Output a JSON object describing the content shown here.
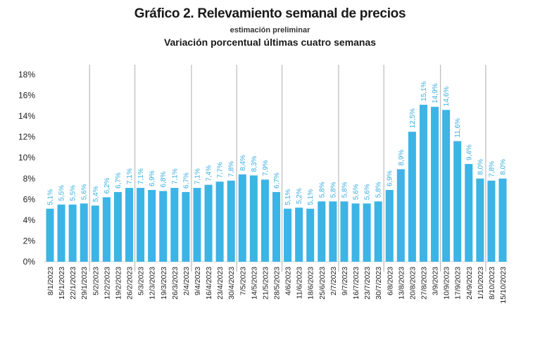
{
  "chart_data": {
    "type": "bar",
    "title": "Gráfico 2. Relevamiento semanal de precios",
    "subtitle": "estimación preliminar",
    "subtitle2": "Variación porcentual últimas cuatro semanas",
    "xlabel": "",
    "ylabel": "",
    "ylim": [
      0,
      18
    ],
    "yticks": [
      "0%",
      "2%",
      "4%",
      "6%",
      "8%",
      "10%",
      "12%",
      "14%",
      "16%",
      "18%"
    ],
    "ytick_values": [
      0,
      2,
      4,
      6,
      8,
      10,
      12,
      14,
      16,
      18
    ],
    "grid": false,
    "bar_color": "#3cb4e6",
    "label_color": "#3aaee0",
    "separator_color": "#bfbfbf",
    "categories": [
      "8/1/2023",
      "15/1/2023",
      "22/1/2023",
      "29/1/2023",
      "5/2/2023",
      "12/2/2023",
      "19/2/2023",
      "26/2/2023",
      "5/3/2023",
      "12/3/2023",
      "19/3/2023",
      "26/3/2023",
      "2/4/2023",
      "9/4/2023",
      "16/4/2023",
      "23/4/2023",
      "30/4/2023",
      "7/5/2023",
      "14/5/2023",
      "21/5/2023",
      "28/5/2023",
      "4/6/2023",
      "11/6/2023",
      "18/6/2023",
      "25/6/2023",
      "2/7/2023",
      "9/7/2023",
      "16/7/2023",
      "23/7/2023",
      "30/7/2023",
      "6/8/2023",
      "13/8/2023",
      "20/8/2023",
      "27/8/2023",
      "3/9/2023",
      "10/9/2023",
      "17/9/2023",
      "24/9/2023",
      "1/10/2023",
      "8/10/2023",
      "15/10/2023"
    ],
    "values": [
      5.1,
      5.5,
      5.5,
      5.6,
      5.4,
      6.2,
      6.7,
      7.1,
      7.1,
      6.9,
      6.8,
      7.1,
      6.7,
      7.1,
      7.4,
      7.7,
      7.8,
      8.4,
      8.3,
      7.9,
      6.7,
      5.1,
      5.2,
      5.1,
      5.8,
      5.8,
      5.8,
      5.6,
      5.6,
      5.8,
      6.9,
      8.9,
      12.5,
      15.1,
      14.9,
      14.6,
      11.6,
      9.4,
      8.0,
      7.8,
      8.0
    ],
    "data_labels": [
      "5,1%",
      "5,5%",
      "5,5%",
      "5,6%",
      "5,4%",
      "6,2%",
      "6,7%",
      "7,1%",
      "7,1%",
      "6,9%",
      "6,8%",
      "7,1%",
      "6,7%",
      "7,1%",
      "7,4%",
      "7,7%",
      "7,8%",
      "8,4%",
      "8,3%",
      "7,9%",
      "6,7%",
      "5,1%",
      "5,2%",
      "5,1%",
      "5,8%",
      "5,8%",
      "5,8%",
      "5,6%",
      "5,6%",
      "5,8%",
      "6,9%",
      "8,9%",
      "12,5%",
      "15,1%",
      "14,9%",
      "14,6%",
      "11,6%",
      "9,4%",
      "8,0%",
      "7,8%",
      "8,0%"
    ],
    "month_separators_after_index": [
      3,
      7,
      12,
      16,
      20,
      25,
      29,
      34,
      38
    ]
  }
}
